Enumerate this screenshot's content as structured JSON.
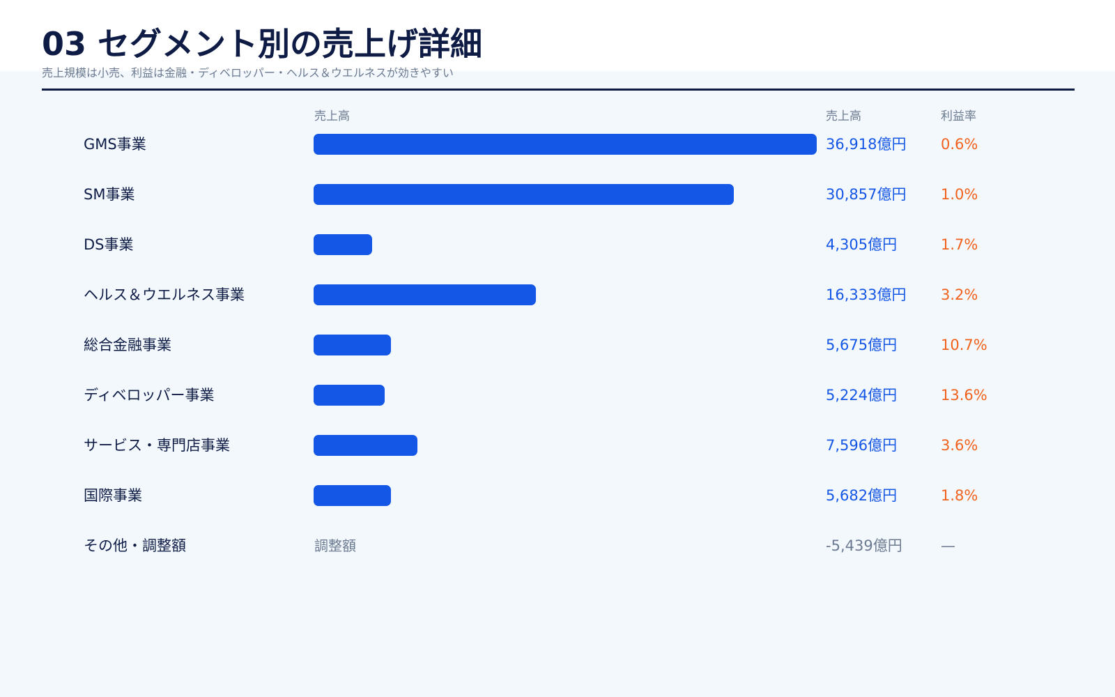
{
  "header": {
    "title": "03 セグメント別の売上げ詳細",
    "subtitle": "売上規模は小売、利益は金融・ディベロッパー・ヘルス＆ウエルネスが効きやすい"
  },
  "columns": {
    "bar_header": "売上高",
    "sales_header": "売上高",
    "margin_header": "利益率"
  },
  "colors": {
    "bar": "#1456e6",
    "sales_text": "#1456e6",
    "margin_text": "#f2611c",
    "title": "#0d1b45"
  },
  "chart_data": {
    "type": "bar",
    "orientation": "horizontal",
    "unit": "億円",
    "categories": [
      "GMS事業",
      "SM事業",
      "DS事業",
      "ヘルス＆ウエルネス事業",
      "総合金融事業",
      "ディベロッパー事業",
      "サービス・専門店事業",
      "国際事業"
    ],
    "values": [
      36918,
      30857,
      4305,
      16333,
      5675,
      5224,
      7596,
      5682
    ],
    "value_labels": [
      "36,918億円",
      "30,857億円",
      "4,305億円",
      "16,333億円",
      "5,675億円",
      "5,224億円",
      "7,596億円",
      "5,682億円"
    ],
    "margin_labels": [
      "0.6%",
      "1.0%",
      "1.7%",
      "3.2%",
      "10.7%",
      "13.6%",
      "3.6%",
      "1.8%"
    ],
    "xlim": [
      0,
      36918
    ],
    "grid": false,
    "adjustment": {
      "name": "その他・調整額",
      "label": "調整額",
      "value": -5439,
      "value_label": "-5,439億円",
      "margin_label": "—"
    }
  }
}
